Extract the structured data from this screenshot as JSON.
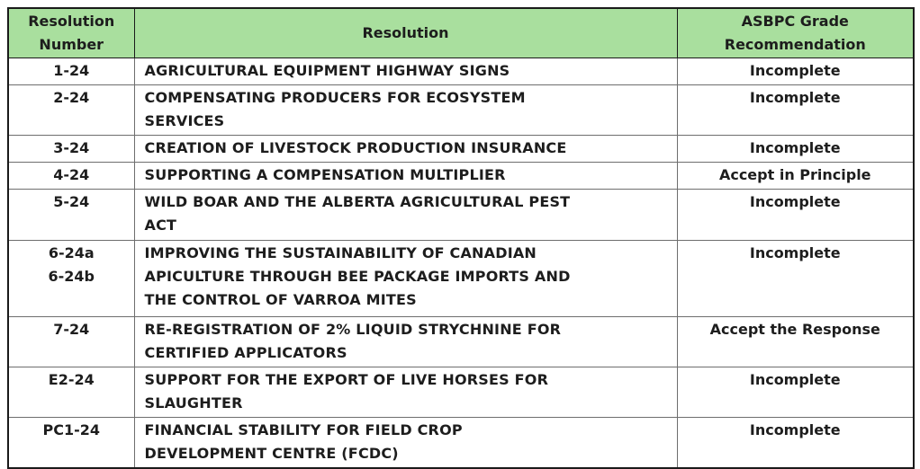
{
  "colors": {
    "header_bg": "#A9DF9E",
    "grid_line": "#6e6e6e",
    "outer_border": "#1a1a1a",
    "text": "#1d1d1d"
  },
  "table": {
    "columns": [
      {
        "label": "Resolution\nNumber"
      },
      {
        "label": "Resolution"
      },
      {
        "label": "ASBPC Grade\nRecommendation"
      }
    ],
    "rows": [
      {
        "number": "1-24",
        "resolution": "AGRICULTURAL EQUIPMENT HIGHWAY SIGNS",
        "grade": "Incomplete"
      },
      {
        "number": "2-24",
        "resolution": "COMPENSATING PRODUCERS FOR ECOSYSTEM\nSERVICES",
        "grade": "Incomplete"
      },
      {
        "number": "3-24",
        "resolution": "CREATION OF LIVESTOCK PRODUCTION INSURANCE",
        "grade": "Incomplete"
      },
      {
        "number": "4-24",
        "resolution": "SUPPORTING A COMPENSATION MULTIPLIER",
        "grade": "Accept in Principle"
      },
      {
        "number": "5-24",
        "resolution": "WILD BOAR AND THE ALBERTA AGRICULTURAL PEST\nACT",
        "grade": "Incomplete"
      },
      {
        "number": "6-24a\n6-24b",
        "resolution": "IMPROVING THE SUSTAINABILITY OF CANADIAN\nAPICULTURE THROUGH BEE PACKAGE IMPORTS AND\nTHE CONTROL OF VARROA MITES",
        "grade": "Incomplete"
      },
      {
        "number": "7-24",
        "resolution": "RE-REGISTRATION OF 2% LIQUID STRYCHNINE FOR\nCERTIFIED APPLICATORS",
        "grade": "Accept the Response"
      },
      {
        "number": "E2-24",
        "resolution": "SUPPORT FOR THE EXPORT OF LIVE HORSES FOR\nSLAUGHTER",
        "grade": "Incomplete"
      },
      {
        "number": "PC1-24",
        "resolution": "FINANCIAL STABILITY FOR FIELD CROP\nDEVELOPMENT CENTRE (FCDC)",
        "grade": "Incomplete"
      }
    ]
  }
}
